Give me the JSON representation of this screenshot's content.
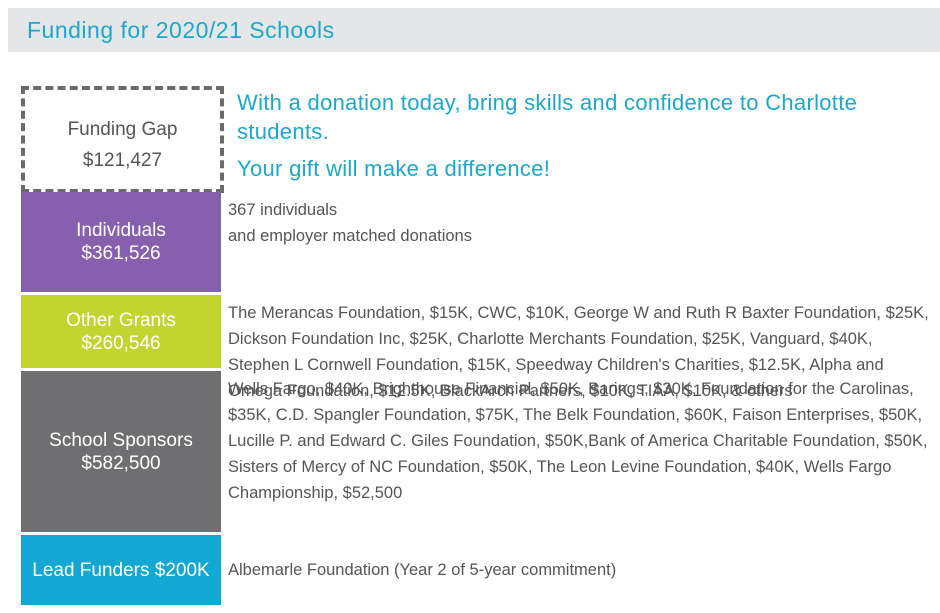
{
  "header": {
    "title": "Funding for 2020/21 Schools"
  },
  "callout": {
    "line1": "With a donation today, bring skills and confidence to Charlotte students.",
    "line2": "Your gift will make a difference!"
  },
  "colors": {
    "header_bg": "#e5e6e7",
    "accent": "#1aa8cc",
    "gap_border": "#6a6a6c",
    "text": "#555557"
  },
  "chart_data": {
    "type": "bar",
    "stacked": true,
    "gap": {
      "label": "Funding Gap",
      "amount": "$121,427",
      "value": 121427
    },
    "segments": [
      {
        "label": "Individuals",
        "amount": "$361,526",
        "value": 361526,
        "color": "#8660ae",
        "description": [
          "367 individuals",
          "and employer matched donations"
        ]
      },
      {
        "label": "Other Grants",
        "amount": "$260,546",
        "value": 260546,
        "color": "#c1d42f",
        "description": [
          "The Merancas Foundation, $15K, CWC, $10K, George W and Ruth R Baxter Foundation, $25K, Dickson Foundation Inc, $25K, Charlotte Merchants Foundation, $25K, Vanguard, $40K, Stephen L Cornwell Foundation, $15K, Speedway Children's Charities, $12.5K, Alpha and Omega Foundation, $12.5K, BlackArch Partners, $10K, TIAA, $10K, & others"
        ]
      },
      {
        "label": "School Sponsors",
        "amount": "$582,500",
        "value": 582500,
        "color": "#6f6f71",
        "description": [
          "Wells Fargo, $40K, Brighthouse Financial, $50K, Barings, $30K, Foundation for the Carolinas, $35K, C.D. Spangler Foundation, $75K, The Belk Foundation, $60K, Faison Enterprises, $50K, Lucille P. and Edward C. Giles Foundation, $50K,Bank of America Charitable Foundation, $50K, Sisters of Mercy of NC Foundation, $50K, The Leon Levine Foundation, $40K, Wells Fargo Championship, $52,500"
        ]
      },
      {
        "label": "Lead Funders",
        "amount": "$200K",
        "value": 200000,
        "color": "#12a8d3",
        "inline": true,
        "description": [
          "Albemarle Foundation (Year 2 of 5-year commitment)"
        ]
      }
    ]
  }
}
